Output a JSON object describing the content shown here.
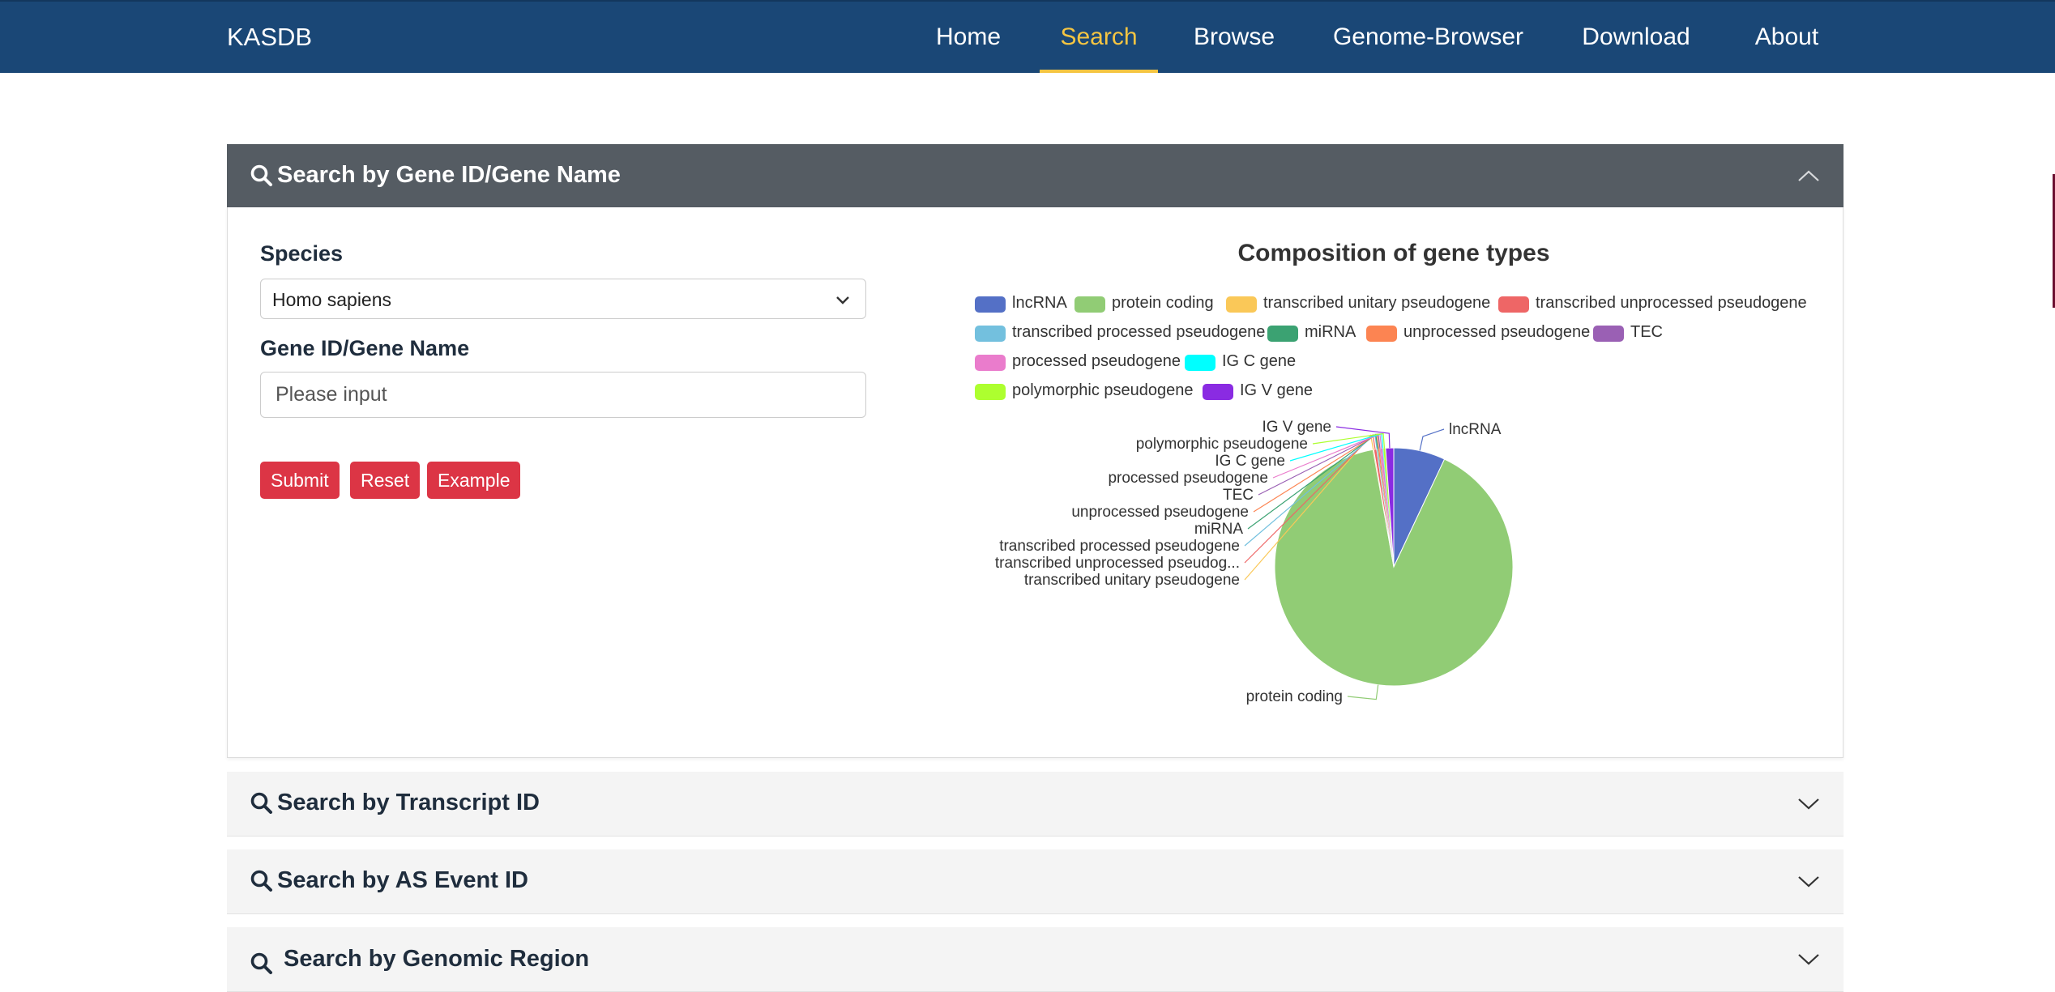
{
  "navbar": {
    "brand": "KASDB",
    "links": [
      "Home",
      "Search",
      "Browse",
      "Genome-Browser",
      "Download",
      "About"
    ],
    "active": "Search",
    "accent_color": "#f5c542",
    "background": "#1a4776"
  },
  "panels": {
    "gene": {
      "title": "Search by Gene ID/Gene Name",
      "icon": "search-icon",
      "state": "expanded"
    },
    "transcript": {
      "title": "Search by Transcript ID",
      "icon": "search-icon",
      "state": "collapsed"
    },
    "as_event": {
      "title": "Search by AS Event ID",
      "icon": "search-icon",
      "state": "collapsed"
    },
    "region": {
      "title": "Search by Genomic Region",
      "icon": "search-icon",
      "state": "collapsed"
    }
  },
  "form": {
    "species_label": "Species",
    "species_value": "Homo sapiens",
    "gene_label": "Gene ID/Gene Name",
    "gene_placeholder": "Please input",
    "buttons": {
      "submit": "Submit",
      "reset": "Reset",
      "example": "Example"
    },
    "button_color": "#dc3545"
  },
  "chart_data": {
    "type": "pie",
    "title": "Composition of gene types",
    "legend_position": "top",
    "slices": [
      {
        "name": "lncRNA",
        "value": 7.0,
        "color": "#5470c6"
      },
      {
        "name": "protein coding",
        "value": 90.2,
        "color": "#91cc75"
      },
      {
        "name": "transcribed unitary pseudogene",
        "value": 0.1,
        "color": "#fac858"
      },
      {
        "name": "transcribed unprocessed pseudogene",
        "value": 0.4,
        "color": "#ee6666"
      },
      {
        "name": "transcribed processed pseudogene",
        "value": 0.1,
        "color": "#73c0de"
      },
      {
        "name": "miRNA",
        "value": 0.1,
        "color": "#3ba272"
      },
      {
        "name": "unprocessed pseudogene",
        "value": 0.2,
        "color": "#fc8452"
      },
      {
        "name": "TEC",
        "value": 0.1,
        "color": "#9a60b4"
      },
      {
        "name": "processed pseudogene",
        "value": 0.3,
        "color": "#ea7ccc"
      },
      {
        "name": "IG C gene",
        "value": 0.1,
        "color": "#00ffff"
      },
      {
        "name": "polymorphic pseudogene",
        "value": 0.3,
        "color": "#adff2f"
      },
      {
        "name": "IG V gene",
        "value": 1.1,
        "color": "#8a2be2"
      }
    ],
    "slice_labels": {
      "truncated": {
        "transcribed unprocessed pseudogene": "transcribed unprocessed pseudog..."
      }
    }
  }
}
